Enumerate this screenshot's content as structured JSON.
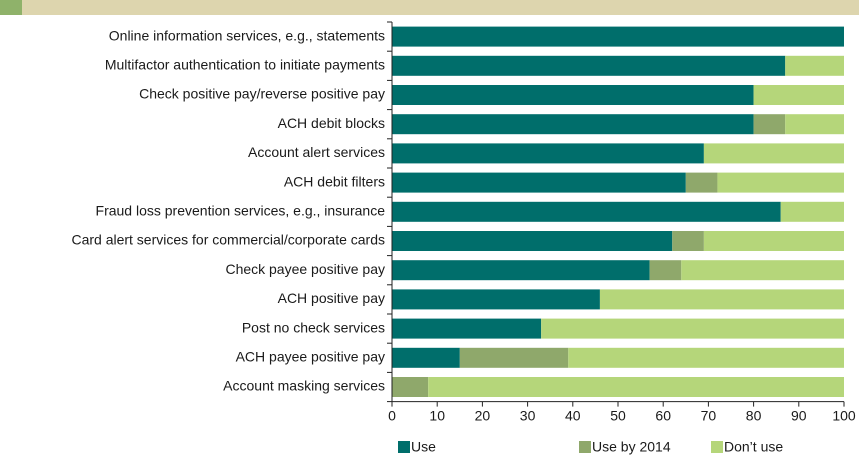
{
  "chart_data": {
    "type": "stacked_bar_horizontal",
    "categories": [
      "Online information services, e.g., statements",
      "Multifactor authentication to initiate payments",
      "Check positive pay/reverse positive pay",
      "ACH debit blocks",
      "Account alert services",
      "ACH debit filters",
      "Fraud loss prevention services, e.g., insurance",
      "Card alert services for commercial/corporate cards",
      "Check payee positive pay",
      "ACH positive pay",
      "Post no check services",
      "ACH payee positive pay",
      "Account masking services"
    ],
    "series": [
      {
        "name": "Use",
        "color": "#006e6b",
        "values": [
          100,
          87,
          80,
          80,
          69,
          65,
          86,
          62,
          57,
          46,
          33,
          15,
          0
        ]
      },
      {
        "name": "Use by 2014",
        "color": "#8fa86b",
        "values": [
          0,
          0,
          0,
          7,
          0,
          7,
          0,
          7,
          7,
          0,
          0,
          24,
          8
        ]
      },
      {
        "name": "Don’t use",
        "color": "#b5d67a",
        "values": [
          0,
          13,
          20,
          13,
          31,
          28,
          14,
          31,
          36,
          54,
          67,
          61,
          92
        ]
      }
    ],
    "xlim": [
      0,
      100
    ],
    "xticks": [
      0,
      10,
      20,
      30,
      40,
      50,
      60,
      70,
      80,
      90,
      100
    ],
    "legend": "bottom"
  }
}
